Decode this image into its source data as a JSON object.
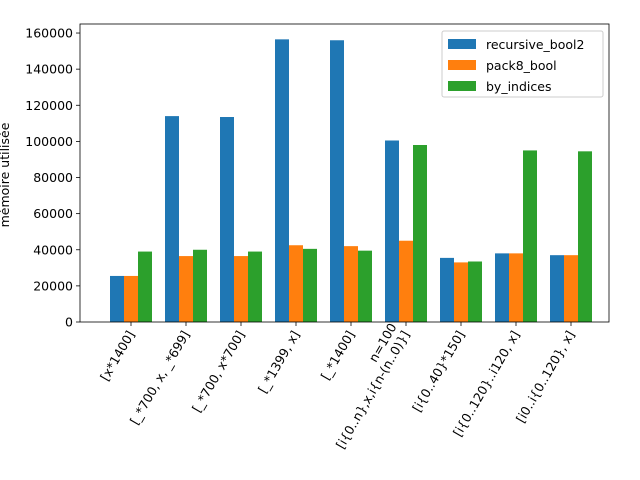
{
  "chart_data": {
    "type": "bar",
    "title": "",
    "xlabel": "",
    "ylabel": "mémoire utilisée",
    "ylim": [
      0,
      165000
    ],
    "yticks": [
      0,
      20000,
      40000,
      60000,
      80000,
      100000,
      120000,
      140000,
      160000
    ],
    "ytick_labels": [
      "0",
      "20000",
      "40000",
      "60000",
      "80000",
      "100000",
      "120000",
      "140000",
      "160000"
    ],
    "grid": false,
    "legend_position": "top-right",
    "categories": [
      "[x*1400]",
      "[_*700, x, _*699]",
      "[_*700, x*700]",
      "[_*1399, x]",
      "[_*1400]",
      "n=100\n[i{0..n},x,i{n-(n..0)}]",
      "[i{0..40}*150]",
      "[i{0..120}..i120, x]",
      "[i0..i{0..120}, x]"
    ],
    "series": [
      {
        "name": "recursive_bool2",
        "color": "#1f77b4",
        "values": [
          25500,
          114000,
          113500,
          156500,
          156000,
          100500,
          35500,
          38000,
          37000
        ]
      },
      {
        "name": "pack8_bool",
        "color": "#ff7f0e",
        "values": [
          25500,
          36500,
          36500,
          42500,
          42000,
          45000,
          33000,
          38000,
          37000
        ]
      },
      {
        "name": "by_indices",
        "color": "#2ca02c",
        "values": [
          39000,
          40000,
          39000,
          40500,
          39500,
          98000,
          33500,
          95000,
          94500
        ]
      }
    ]
  }
}
